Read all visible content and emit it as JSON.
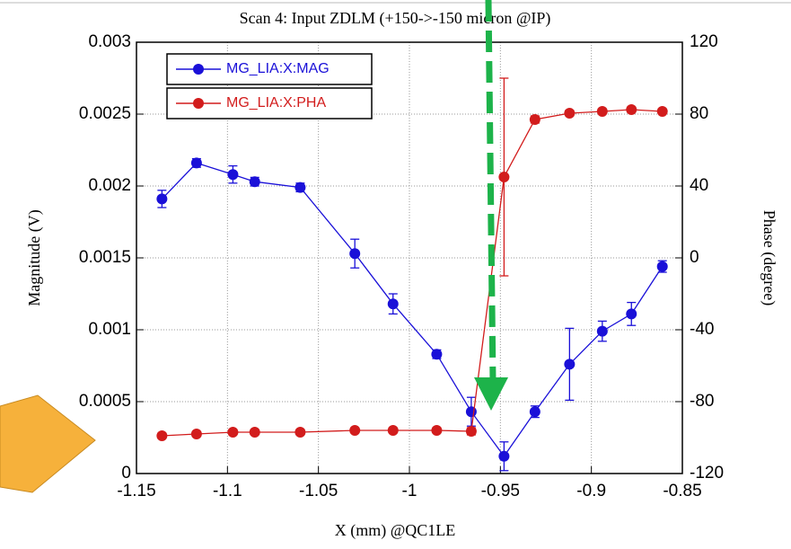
{
  "chart_data": {
    "type": "line",
    "title": "Scan 4: Input ZDLM (+150->-150 micron @IP)",
    "x_label": "X (mm) @QC1LE",
    "y_label": "Magnitude (V)",
    "y2_label": "Phase (degree)",
    "x": [
      -1.136,
      -1.117,
      -1.097,
      -1.085,
      -1.06,
      -1.03,
      -1.009,
      -0.985,
      -0.966,
      -0.948,
      -0.931,
      -0.912,
      -0.894,
      -0.878,
      -0.861
    ],
    "series": [
      {
        "name": "MG_LIA:X:MAG",
        "color": "#1a10d8",
        "values": [
          0.00191,
          0.00216,
          0.00208,
          0.00203,
          0.00199,
          0.00153,
          0.00118,
          0.00083,
          0.00043,
          0.00012,
          0.00043,
          0.00076,
          0.00099,
          0.00111,
          0.00144
        ],
        "errors": [
          6e-05,
          3e-05,
          6e-05,
          3e-05,
          3e-05,
          0.0001,
          7e-05,
          3e-05,
          0.0001,
          0.0001,
          4e-05,
          0.00025,
          7e-05,
          8e-05,
          4e-05
        ]
      },
      {
        "name": "MG_LIA:X:PHA",
        "color": "#d21c1c",
        "axis": "y2",
        "values": [
          -99,
          -98,
          -97,
          -97,
          -97,
          -96,
          -96,
          -96,
          -96.5,
          45,
          77,
          80.5,
          81.5,
          82.5,
          81.5
        ],
        "errors": [
          1,
          1,
          1,
          1,
          1,
          1,
          1,
          1,
          2,
          55,
          2,
          1.5,
          1,
          1,
          1
        ]
      }
    ],
    "xlim": [
      -1.15,
      -0.85
    ],
    "xticks": [
      -1.15,
      -1.1,
      -1.05,
      -1,
      -0.95,
      -0.9,
      -0.85
    ],
    "ylim": [
      0,
      0.003
    ],
    "yticks": [
      0,
      0.0005,
      0.001,
      0.0015,
      0.002,
      0.0025,
      0.003
    ],
    "y2lim": [
      -120,
      120
    ],
    "y2ticks": [
      -120,
      -80,
      -40,
      0,
      40,
      80,
      120
    ],
    "grid": true,
    "legend": "top-left"
  }
}
